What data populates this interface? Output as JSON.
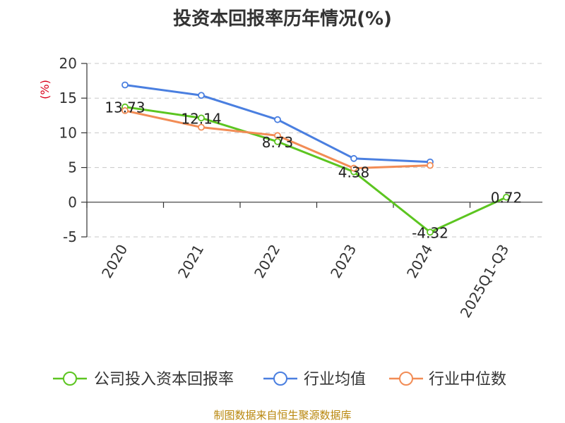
{
  "chart_data": {
    "type": "line",
    "title": "投资本回报率历年情况(%)",
    "ylabel": "(%)",
    "xlabel": "",
    "categories": [
      "2020",
      "2021",
      "2022",
      "2023",
      "2024",
      "2025Q1-Q3"
    ],
    "ylim": [
      -5,
      20
    ],
    "yticks": [
      -5,
      0,
      5,
      10,
      15,
      20
    ],
    "grid": true,
    "legend_position": "bottom",
    "series": [
      {
        "name": "公司投入资本回报率",
        "color": "#5cc520",
        "values": [
          13.73,
          12.14,
          8.73,
          4.38,
          -4.32,
          0.72
        ],
        "labels": [
          "13.73",
          "12.14",
          "8.73",
          "4.38",
          "-4.32",
          "0.72"
        ]
      },
      {
        "name": "行业均值",
        "color": "#4a7fe0",
        "values": [
          16.9,
          15.4,
          11.9,
          6.3,
          5.8,
          null
        ]
      },
      {
        "name": "行业中位数",
        "color": "#f28c55",
        "values": [
          13.2,
          10.8,
          9.6,
          4.9,
          5.3,
          null
        ]
      }
    ],
    "source": "制图数据来自恒生聚源数据库"
  }
}
